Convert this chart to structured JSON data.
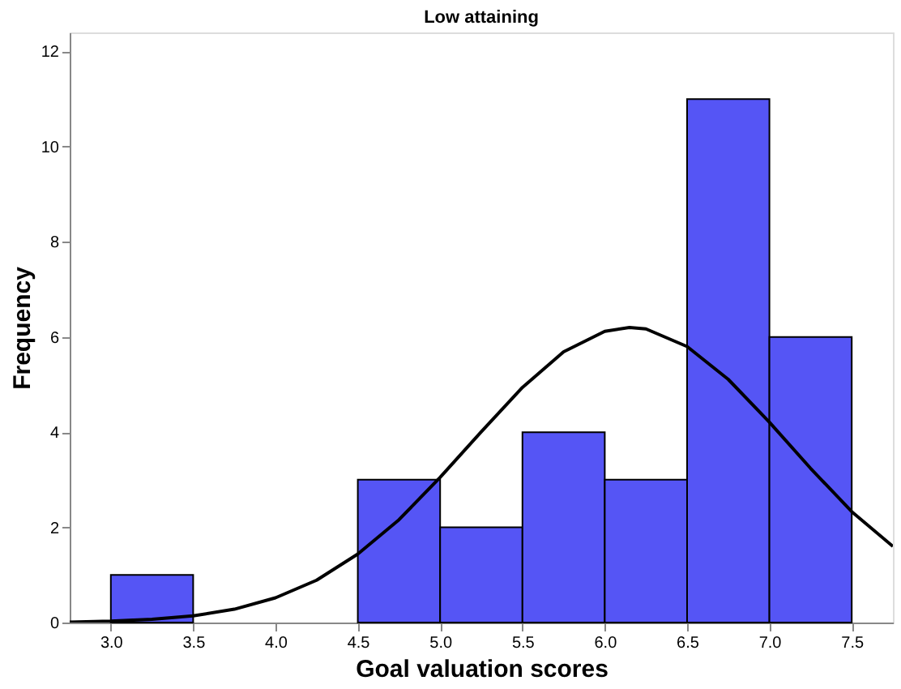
{
  "chart_data": {
    "type": "histogram",
    "title": "Low attaining",
    "xlabel": "Goal valuation scores",
    "ylabel": "Frequency",
    "bins": [
      3.0,
      3.5,
      4.0,
      4.5,
      5.0,
      5.5,
      6.0,
      6.5,
      7.0,
      7.5
    ],
    "values": [
      1,
      0,
      0,
      3,
      2,
      4,
      3,
      11,
      6
    ],
    "color": "#5555f5",
    "series": [
      {
        "type": "line",
        "color": "#000000",
        "x": [
          2.75,
          3.0,
          3.25,
          3.5,
          3.75,
          4.0,
          4.25,
          4.5,
          4.75,
          5.0,
          5.25,
          5.5,
          5.75,
          6.0,
          6.15,
          6.25,
          6.5,
          6.75,
          7.0,
          7.25,
          7.5,
          7.75
        ],
        "values": [
          0.01,
          0.03,
          0.07,
          0.14,
          0.28,
          0.52,
          0.89,
          1.44,
          2.16,
          3.05,
          4.01,
          4.94,
          5.69,
          6.12,
          6.2,
          6.17,
          5.8,
          5.11,
          4.21,
          3.24,
          2.33,
          1.6
        ]
      }
    ],
    "xlim": [
      2.75,
      7.75
    ],
    "ylim": [
      0,
      12.4
    ],
    "xticks": [
      {
        "value": 3,
        "label": "3.0"
      },
      {
        "value": 3.5,
        "label": "3.5"
      },
      {
        "value": 4,
        "label": "4.0"
      },
      {
        "value": 4.5,
        "label": "4.5"
      },
      {
        "value": 5,
        "label": "5.0"
      },
      {
        "value": 5.5,
        "label": "5.5"
      },
      {
        "value": 6,
        "label": "6.0"
      },
      {
        "value": 6.5,
        "label": "6.5"
      },
      {
        "value": 7,
        "label": "7.0"
      },
      {
        "value": 7.5,
        "label": "7.5"
      }
    ],
    "yticks": [
      0,
      2,
      4,
      6,
      8,
      10,
      12
    ],
    "grid": false
  }
}
